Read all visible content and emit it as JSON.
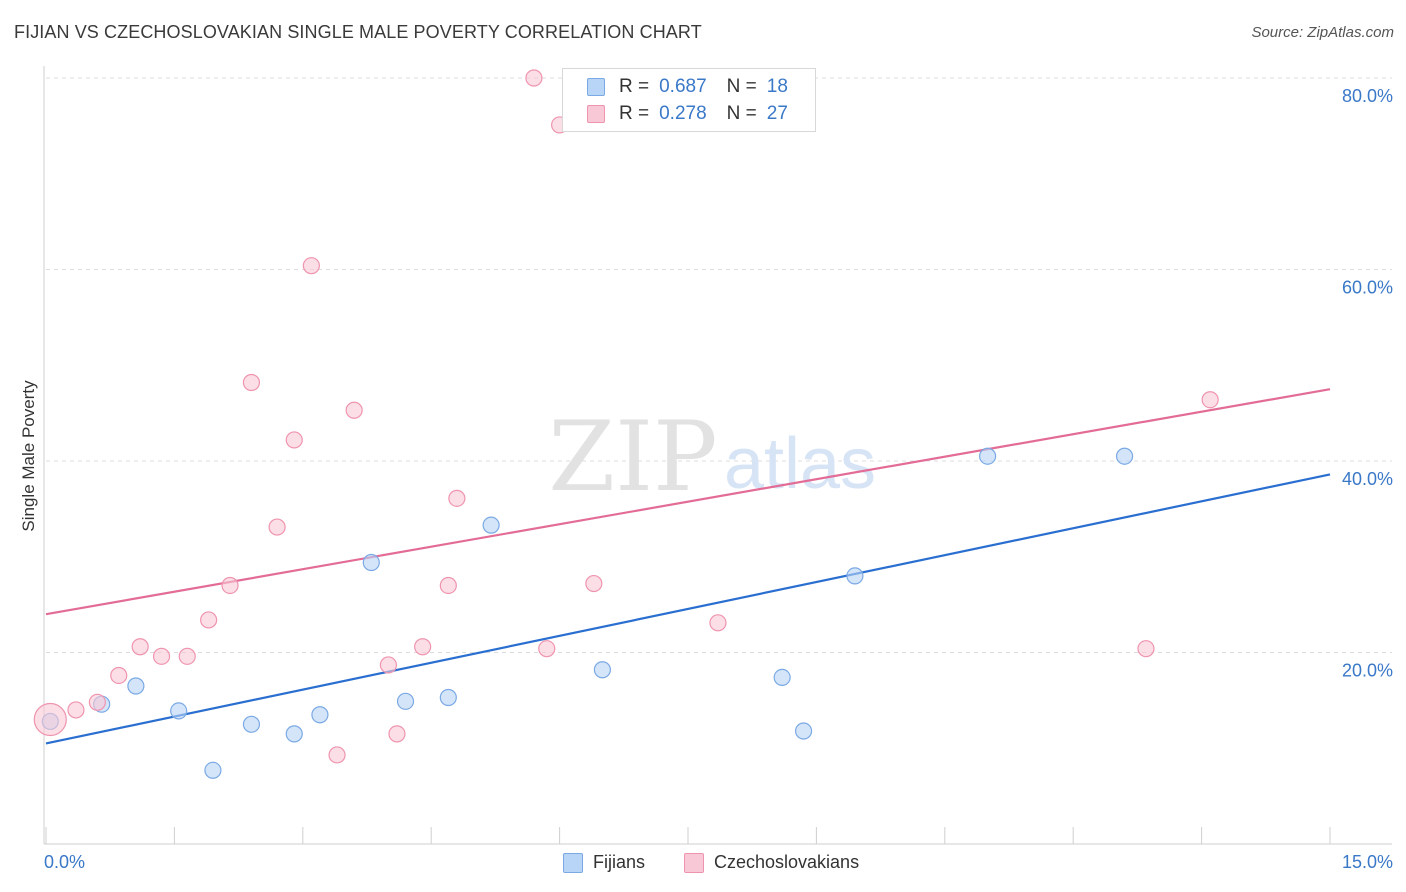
{
  "header": {
    "title": "FIJIAN VS CZECHOSLOVAKIAN SINGLE MALE POVERTY CORRELATION CHART",
    "source": "Source: ZipAtlas.com"
  },
  "watermark": {
    "zip": "ZIP",
    "atlas": "atlas"
  },
  "legend_top": {
    "rows": [
      {
        "r_label": "R =",
        "r_value": "0.687",
        "n_label": "N =",
        "n_value": "18",
        "color": "#b8d4f6",
        "border": "#7aa9e4"
      },
      {
        "r_label": "R =",
        "r_value": "0.278",
        "n_label": "N =",
        "n_value": "27",
        "color": "#f9c8d6",
        "border": "#ef94ae"
      }
    ]
  },
  "legend_bottom": [
    {
      "label": "Fijians",
      "color": "#b8d4f6",
      "border": "#7aa9e4"
    },
    {
      "label": "Czechoslovakians",
      "color": "#f9c8d6",
      "border": "#ef94ae"
    }
  ],
  "chart_data": {
    "type": "scatter",
    "title": "FIJIAN VS CZECHOSLOVAKIAN SINGLE MALE POVERTY CORRELATION CHART",
    "xlabel": "",
    "ylabel": "Single Male Poverty",
    "xlim": [
      0,
      15
    ],
    "ylim": [
      0,
      80
    ],
    "x_tick_labels": [
      "0.0%",
      "15.0%"
    ],
    "y_ticks": [
      20,
      40,
      60,
      80
    ],
    "y_tick_labels": [
      "20.0%",
      "40.0%",
      "60.0%",
      "80.0%"
    ],
    "grid": "horizontal dashed",
    "legend_placement": "top-center and bottom",
    "series": [
      {
        "name": "Fijians",
        "color": "#7aa9e4",
        "fill": "#b8d4f6",
        "line_color": "#2a6fd0",
        "trend": {
          "x": [
            0,
            15
          ],
          "y": [
            10.5,
            38.6
          ]
        },
        "points": [
          {
            "x": 0.05,
            "y": 12.8
          },
          {
            "x": 0.65,
            "y": 14.6
          },
          {
            "x": 1.05,
            "y": 16.5
          },
          {
            "x": 1.55,
            "y": 13.9
          },
          {
            "x": 1.95,
            "y": 7.7
          },
          {
            "x": 2.4,
            "y": 12.5
          },
          {
            "x": 2.9,
            "y": 11.5
          },
          {
            "x": 3.2,
            "y": 13.5
          },
          {
            "x": 3.8,
            "y": 29.4
          },
          {
            "x": 4.2,
            "y": 14.9
          },
          {
            "x": 4.7,
            "y": 15.3
          },
          {
            "x": 5.2,
            "y": 33.3
          },
          {
            "x": 6.5,
            "y": 18.2
          },
          {
            "x": 8.6,
            "y": 17.4
          },
          {
            "x": 8.85,
            "y": 11.8
          },
          {
            "x": 9.45,
            "y": 28.0
          },
          {
            "x": 11.0,
            "y": 40.5
          },
          {
            "x": 12.6,
            "y": 40.5
          }
        ]
      },
      {
        "name": "Czechoslovakians",
        "color": "#ef94ae",
        "fill": "#f9c8d6",
        "line_color": "#e36c96",
        "trend": {
          "x": [
            0,
            15
          ],
          "y": [
            24.0,
            47.5
          ]
        },
        "points": [
          {
            "x": 0.05,
            "y": 13.0,
            "big": true
          },
          {
            "x": 0.35,
            "y": 14.0
          },
          {
            "x": 0.6,
            "y": 14.8
          },
          {
            "x": 0.85,
            "y": 17.6
          },
          {
            "x": 1.1,
            "y": 20.6
          },
          {
            "x": 1.35,
            "y": 19.6
          },
          {
            "x": 1.65,
            "y": 19.6
          },
          {
            "x": 1.9,
            "y": 23.4
          },
          {
            "x": 2.15,
            "y": 27.0
          },
          {
            "x": 2.4,
            "y": 48.2
          },
          {
            "x": 2.7,
            "y": 33.1
          },
          {
            "x": 2.9,
            "y": 42.2
          },
          {
            "x": 3.1,
            "y": 60.4
          },
          {
            "x": 3.4,
            "y": 9.3
          },
          {
            "x": 3.6,
            "y": 45.3
          },
          {
            "x": 4.0,
            "y": 18.7
          },
          {
            "x": 4.1,
            "y": 11.5
          },
          {
            "x": 4.4,
            "y": 20.6
          },
          {
            "x": 4.7,
            "y": 27.0
          },
          {
            "x": 4.8,
            "y": 36.1
          },
          {
            "x": 5.7,
            "y": 80.0
          },
          {
            "x": 5.85,
            "y": 20.4
          },
          {
            "x": 6.0,
            "y": 75.1
          },
          {
            "x": 6.4,
            "y": 27.2
          },
          {
            "x": 7.85,
            "y": 23.1
          },
          {
            "x": 12.85,
            "y": 20.4
          },
          {
            "x": 13.6,
            "y": 46.4
          }
        ]
      }
    ]
  }
}
